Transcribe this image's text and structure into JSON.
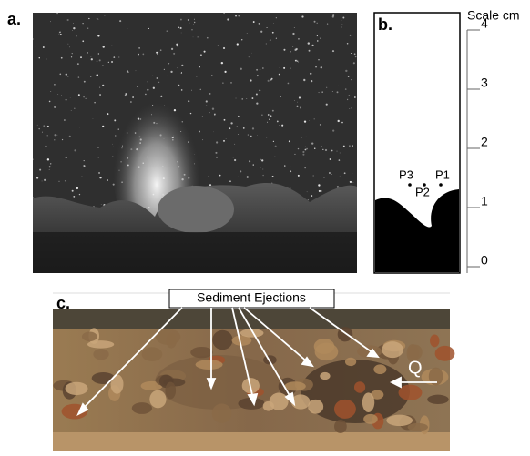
{
  "panels": {
    "a": "a.",
    "b": "b.",
    "c": "c."
  },
  "scale": {
    "title": "Scale cm",
    "ticks": [
      0,
      1,
      2,
      3,
      4
    ]
  },
  "points": [
    "P1",
    "P2",
    "P3"
  ],
  "callout": "Sediment Ejections",
  "flow_label": "Q"
}
